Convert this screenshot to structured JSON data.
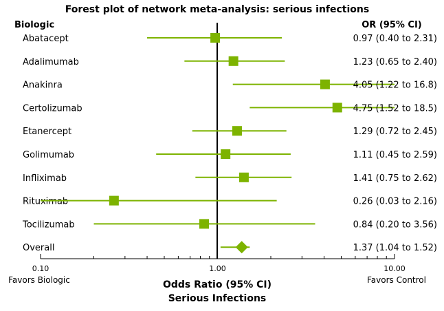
{
  "chart_data": {
    "type": "forest",
    "title": "Forest plot of network meta-analysis: serious infections",
    "column_left_header": "Biologic",
    "column_right_header": "OR (95% CI)",
    "xscale": "log",
    "xlim": [
      0.1,
      10
    ],
    "xticks": [
      {
        "value": 0.1,
        "label": "0.10"
      },
      {
        "value": 1,
        "label": "1.00"
      },
      {
        "value": 10,
        "label": "10.00"
      }
    ],
    "reference_line": 1,
    "xlabel": "Odds Ratio (95% CI)",
    "xlabel_sub": "Serious Infections",
    "favors_left": "Favors Biologic",
    "favors_right": "Favors Control",
    "marker_color": "#7db300",
    "rows": [
      {
        "name": "Abatacept",
        "or": 0.97,
        "lo": 0.4,
        "hi": 2.31,
        "text": "0.97 (0.40 to 2.31)",
        "marker": "square"
      },
      {
        "name": "Adalimumab",
        "or": 1.23,
        "lo": 0.65,
        "hi": 2.4,
        "text": "1.23 (0.65 to 2.40)",
        "marker": "square"
      },
      {
        "name": "Anakinra",
        "or": 4.05,
        "lo": 1.22,
        "hi": 16.8,
        "text": "4.05 (1.22 to 16.8)",
        "marker": "square"
      },
      {
        "name": "Certolizumab",
        "or": 4.75,
        "lo": 1.52,
        "hi": 18.5,
        "text": "4.75 (1.52 to 18.5)",
        "marker": "square"
      },
      {
        "name": "Etanercept",
        "or": 1.29,
        "lo": 0.72,
        "hi": 2.45,
        "text": "1.29 (0.72 to 2.45)",
        "marker": "square"
      },
      {
        "name": "Golimumab",
        "or": 1.11,
        "lo": 0.45,
        "hi": 2.59,
        "text": "1.11 (0.45 to 2.59)",
        "marker": "square"
      },
      {
        "name": "Infliximab",
        "or": 1.41,
        "lo": 0.75,
        "hi": 2.62,
        "text": "1.41 (0.75 to 2.62)",
        "marker": "square"
      },
      {
        "name": "Rituximab",
        "or": 0.26,
        "lo": 0.03,
        "hi": 2.16,
        "text": "0.26 (0.03 to 2.16)",
        "marker": "square"
      },
      {
        "name": "Tocilizumab",
        "or": 0.84,
        "lo": 0.2,
        "hi": 3.56,
        "text": "0.84 (0.20 to 3.56)",
        "marker": "square"
      },
      {
        "name": "Overall",
        "or": 1.37,
        "lo": 1.04,
        "hi": 1.52,
        "text": "1.37 (1.04 to 1.52)",
        "marker": "diamond"
      }
    ]
  }
}
